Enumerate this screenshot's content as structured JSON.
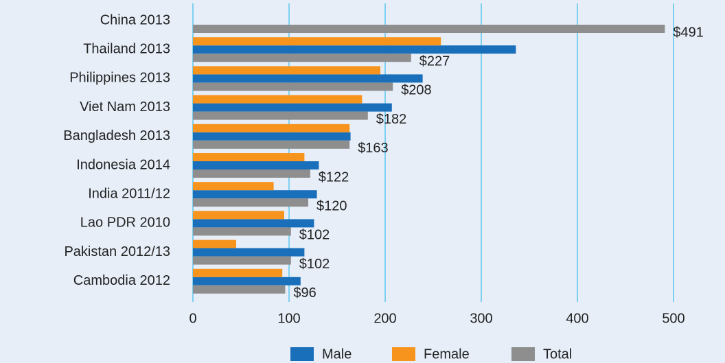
{
  "chart_data": {
    "type": "bar",
    "orientation": "horizontal",
    "categories": [
      "China 2013",
      "Thailand 2013",
      "Philippines 2013",
      "Viet Nam 2013",
      "Bangladesh 2013",
      "Indonesia 2014",
      "India 2011/12",
      "Lao PDR 2010",
      "Pakistan 2012/13",
      "Cambodia 2012"
    ],
    "series": [
      {
        "name": "Male",
        "color": "#1a6fba",
        "values": [
          null,
          336,
          239,
          207,
          164,
          131,
          129,
          126,
          116,
          112
        ]
      },
      {
        "name": "Female",
        "color": "#f7941d",
        "values": [
          null,
          258,
          195,
          176,
          163,
          116,
          84,
          95,
          45,
          93
        ]
      },
      {
        "name": "Total",
        "color": "#8e8e8e",
        "values": [
          491,
          227,
          208,
          182,
          163,
          122,
          120,
          102,
          102,
          96
        ],
        "value_labels": [
          "$491",
          "$227",
          "$208",
          "$182",
          "$163",
          "$122",
          "$120",
          "$102",
          "$102",
          "$96"
        ]
      }
    ],
    "xlim": [
      0,
      500
    ],
    "xticks": [
      0,
      100,
      200,
      300,
      400,
      500
    ],
    "grid": true,
    "legend": "bottom"
  }
}
